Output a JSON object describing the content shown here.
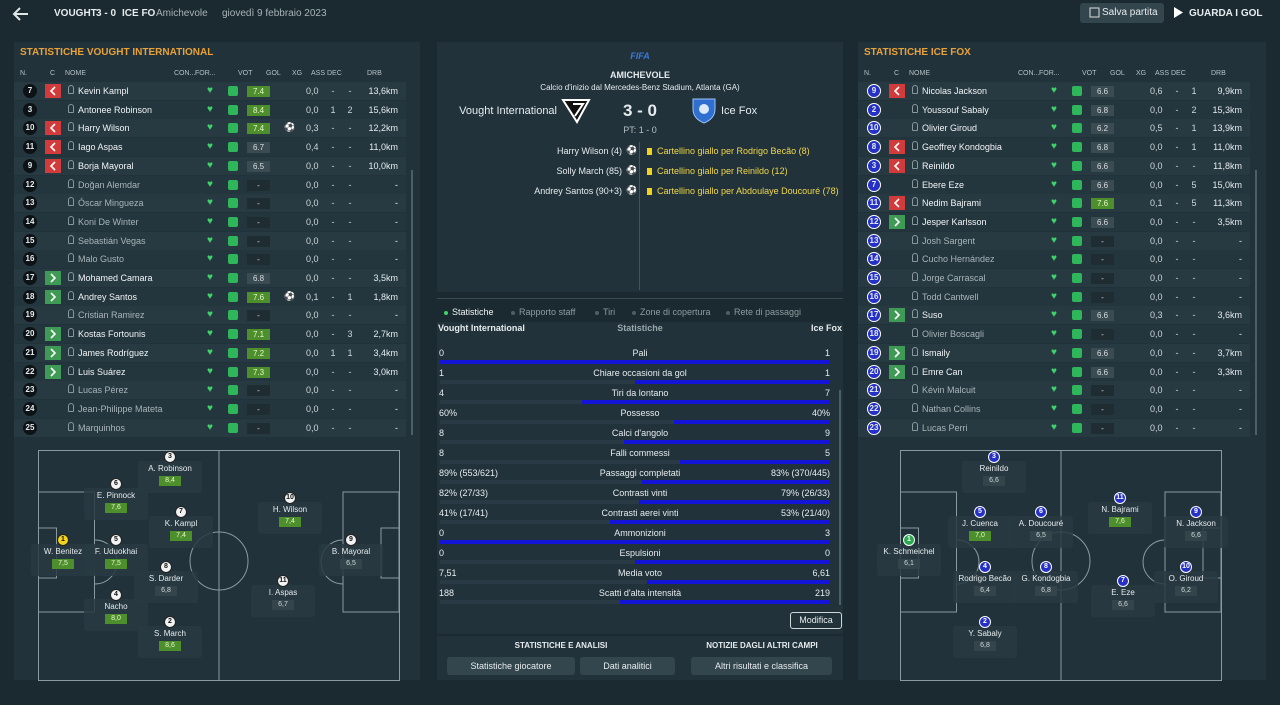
{
  "header": {
    "home": "VOUGHT",
    "score": "3 - 0",
    "away": "ICE FO",
    "competition": "Amichevole",
    "date": "giovedì 9 febbraio 2023",
    "save": "Salva partita",
    "goals": "GUARDA I GOL"
  },
  "columns": [
    "N.",
    "C",
    "NOME",
    "CON...",
    "FOR...",
    "VOT",
    "GOL",
    "XG",
    "ASS",
    "DEC",
    "DRB"
  ],
  "home_panel": {
    "title": "STATISTICHE VOUGHT INTERNATIONAL",
    "rows": [
      {
        "n": "7",
        "sub": "out",
        "name": "Kevin Kampl",
        "vot": "7.4",
        "goal": false,
        "xg": "0,0",
        "ass": "-",
        "dec": "-",
        "drb": "13,6km"
      },
      {
        "n": "3",
        "sub": "",
        "name": "Antonee Robinson",
        "vot": "8.4",
        "goal": false,
        "xg": "0,0",
        "ass": "1",
        "dec": "2",
        "drb": "15,6km"
      },
      {
        "n": "10",
        "sub": "out",
        "name": "Harry Wilson",
        "vot": "7.4",
        "goal": true,
        "xg": "0,3",
        "ass": "-",
        "dec": "-",
        "drb": "12,2km"
      },
      {
        "n": "11",
        "sub": "out",
        "name": "Iago Aspas",
        "vot": "6.7",
        "goal": false,
        "xg": "0,4",
        "ass": "-",
        "dec": "-",
        "drb": "11,0km"
      },
      {
        "n": "9",
        "sub": "out",
        "name": "Borja Mayoral",
        "vot": "6.5",
        "goal": false,
        "xg": "0,0",
        "ass": "-",
        "dec": "-",
        "drb": "10,0km"
      },
      {
        "n": "12",
        "sub": "",
        "name": "Doğan Alemdar",
        "vot": "-",
        "goal": false,
        "xg": "0,0",
        "ass": "-",
        "dec": "-",
        "drb": "-"
      },
      {
        "n": "13",
        "sub": "",
        "name": "Óscar Mingueza",
        "vot": "-",
        "goal": false,
        "xg": "0,0",
        "ass": "-",
        "dec": "-",
        "drb": "-"
      },
      {
        "n": "14",
        "sub": "",
        "name": "Koni De Winter",
        "vot": "-",
        "goal": false,
        "xg": "0,0",
        "ass": "-",
        "dec": "-",
        "drb": "-"
      },
      {
        "n": "15",
        "sub": "",
        "name": "Sebastián Vegas",
        "vot": "-",
        "goal": false,
        "xg": "0,0",
        "ass": "-",
        "dec": "-",
        "drb": "-"
      },
      {
        "n": "16",
        "sub": "",
        "name": "Malo Gusto",
        "vot": "-",
        "goal": false,
        "xg": "0,0",
        "ass": "-",
        "dec": "-",
        "drb": "-"
      },
      {
        "n": "17",
        "sub": "in",
        "name": "Mohamed Camara",
        "vot": "6.8",
        "goal": false,
        "xg": "0,0",
        "ass": "-",
        "dec": "-",
        "drb": "3,5km"
      },
      {
        "n": "18",
        "sub": "in",
        "name": "Andrey Santos",
        "vot": "7.6",
        "goal": true,
        "xg": "0,1",
        "ass": "-",
        "dec": "1",
        "drb": "1,8km"
      },
      {
        "n": "19",
        "sub": "",
        "name": "Cristian Ramirez",
        "vot": "-",
        "goal": false,
        "xg": "0,0",
        "ass": "-",
        "dec": "-",
        "drb": "-"
      },
      {
        "n": "20",
        "sub": "in",
        "name": "Kostas Fortounis",
        "vot": "7.1",
        "goal": false,
        "xg": "0,0",
        "ass": "-",
        "dec": "3",
        "drb": "2,7km"
      },
      {
        "n": "21",
        "sub": "in",
        "name": "James Rodríguez",
        "vot": "7.2",
        "goal": false,
        "xg": "0,0",
        "ass": "1",
        "dec": "1",
        "drb": "3,4km"
      },
      {
        "n": "22",
        "sub": "in",
        "name": "Luis Suárez",
        "vot": "7.3",
        "goal": false,
        "xg": "0,0",
        "ass": "-",
        "dec": "-",
        "drb": "3,0km"
      },
      {
        "n": "23",
        "sub": "",
        "name": "Lucas Pérez",
        "vot": "-",
        "goal": false,
        "xg": "0,0",
        "ass": "-",
        "dec": "-",
        "drb": "-"
      },
      {
        "n": "24",
        "sub": "",
        "name": "Jean-Philippe Mateta",
        "vot": "-",
        "goal": false,
        "xg": "0,0",
        "ass": "-",
        "dec": "-",
        "drb": "-"
      },
      {
        "n": "25",
        "sub": "",
        "name": "Marquinhos",
        "vot": "-",
        "goal": false,
        "xg": "0,0",
        "ass": "-",
        "dec": "-",
        "drb": "-"
      }
    ],
    "pitch": [
      {
        "n": "3",
        "name": "A. Robinson",
        "vot": "8,4"
      },
      {
        "n": "6",
        "name": "E. Pinnock",
        "vot": "7,6"
      },
      {
        "n": "7",
        "name": "K. Kampl",
        "vot": "7,4"
      },
      {
        "n": "10",
        "name": "H. Wilson",
        "vot": "7,4"
      },
      {
        "n": "1",
        "name": "W. Benitez",
        "vot": "7,5",
        "keeper": true
      },
      {
        "n": "5",
        "name": "F. Uduokhai",
        "vot": "7,5"
      },
      {
        "n": "9",
        "name": "B. Mayoral",
        "vot": "6,5"
      },
      {
        "n": "8",
        "name": "S. Darder",
        "vot": "6,8"
      },
      {
        "n": "11",
        "name": "I. Aspas",
        "vot": "6,7"
      },
      {
        "n": "4",
        "name": "Nacho",
        "vot": "8,0"
      },
      {
        "n": "2",
        "name": "S. March",
        "vot": "8,6"
      }
    ]
  },
  "away_panel": {
    "title": "STATISTICHE ICE FOX",
    "rows": [
      {
        "n": "9",
        "sub": "out",
        "name": "Nicolas Jackson",
        "vot": "6.6",
        "goal": false,
        "xg": "0,6",
        "ass": "-",
        "dec": "1",
        "drb": "9,9km"
      },
      {
        "n": "2",
        "sub": "",
        "name": "Youssouf Sabaly",
        "vot": "6.8",
        "goal": false,
        "xg": "0,0",
        "ass": "-",
        "dec": "2",
        "drb": "15,3km"
      },
      {
        "n": "10",
        "sub": "",
        "name": "Olivier Giroud",
        "vot": "6.2",
        "goal": false,
        "xg": "0,5",
        "ass": "-",
        "dec": "1",
        "drb": "13,9km"
      },
      {
        "n": "8",
        "sub": "out",
        "name": "Geoffrey Kondogbia",
        "vot": "6.8",
        "goal": false,
        "xg": "0,0",
        "ass": "-",
        "dec": "1",
        "drb": "11,0km"
      },
      {
        "n": "3",
        "sub": "out",
        "name": "Reinildo",
        "vot": "6.6",
        "goal": false,
        "xg": "0,0",
        "ass": "-",
        "dec": "-",
        "drb": "11,8km"
      },
      {
        "n": "7",
        "sub": "",
        "name": "Ebere Eze",
        "vot": "6.6",
        "goal": false,
        "xg": "0,0",
        "ass": "-",
        "dec": "5",
        "drb": "15,0km"
      },
      {
        "n": "11",
        "sub": "out",
        "name": "Nedim Bajrami",
        "vot": "7.6",
        "goal": false,
        "xg": "0,1",
        "ass": "-",
        "dec": "5",
        "drb": "11,3km"
      },
      {
        "n": "12",
        "sub": "in",
        "name": "Jesper Karlsson",
        "vot": "6.6",
        "goal": false,
        "xg": "0,0",
        "ass": "-",
        "dec": "-",
        "drb": "3,5km"
      },
      {
        "n": "13",
        "sub": "",
        "name": "Josh Sargent",
        "vot": "-",
        "goal": false,
        "xg": "0,0",
        "ass": "-",
        "dec": "-",
        "drb": "-"
      },
      {
        "n": "14",
        "sub": "",
        "name": "Cucho Hernández",
        "vot": "-",
        "goal": false,
        "xg": "0,0",
        "ass": "-",
        "dec": "-",
        "drb": "-"
      },
      {
        "n": "15",
        "sub": "",
        "name": "Jorge Carrascal",
        "vot": "-",
        "goal": false,
        "xg": "0,0",
        "ass": "-",
        "dec": "-",
        "drb": "-"
      },
      {
        "n": "16",
        "sub": "",
        "name": "Todd Cantwell",
        "vot": "-",
        "goal": false,
        "xg": "0,0",
        "ass": "-",
        "dec": "-",
        "drb": "-"
      },
      {
        "n": "17",
        "sub": "in",
        "name": "Suso",
        "vot": "6.6",
        "goal": false,
        "xg": "0,3",
        "ass": "-",
        "dec": "-",
        "drb": "3,6km"
      },
      {
        "n": "18",
        "sub": "",
        "name": "Olivier Boscagli",
        "vot": "-",
        "goal": false,
        "xg": "0,0",
        "ass": "-",
        "dec": "-",
        "drb": "-"
      },
      {
        "n": "19",
        "sub": "in",
        "name": "Ismaily",
        "vot": "6.6",
        "goal": false,
        "xg": "0,0",
        "ass": "-",
        "dec": "-",
        "drb": "3,7km"
      },
      {
        "n": "20",
        "sub": "in",
        "name": "Emre Can",
        "vot": "6.6",
        "goal": false,
        "xg": "0,0",
        "ass": "-",
        "dec": "-",
        "drb": "3,3km"
      },
      {
        "n": "21",
        "sub": "",
        "name": "Kévin Malcuit",
        "vot": "-",
        "goal": false,
        "xg": "0,0",
        "ass": "-",
        "dec": "-",
        "drb": "-"
      },
      {
        "n": "22",
        "sub": "",
        "name": "Nathan Collins",
        "vot": "-",
        "goal": false,
        "xg": "0,0",
        "ass": "-",
        "dec": "-",
        "drb": "-"
      },
      {
        "n": "23",
        "sub": "",
        "name": "Lucas Perri",
        "vot": "-",
        "goal": false,
        "xg": "0,0",
        "ass": "-",
        "dec": "-",
        "drb": "-"
      }
    ],
    "pitch": [
      {
        "n": "3",
        "name": "Reinildo",
        "vot": "6,6"
      },
      {
        "n": "5",
        "name": "J. Cuenca",
        "vot": "7,0"
      },
      {
        "n": "6",
        "name": "A. Doucouré",
        "vot": "6,5"
      },
      {
        "n": "11",
        "name": "N. Bajrami",
        "vot": "7,6"
      },
      {
        "n": "9",
        "name": "N. Jackson",
        "vot": "6,6"
      },
      {
        "n": "1",
        "name": "K. Schmeichel",
        "vot": "6,1",
        "keeper": true
      },
      {
        "n": "4",
        "name": "Rodrigo Becão",
        "vot": "6,4"
      },
      {
        "n": "8",
        "name": "G. Kondogbia",
        "vot": "6,8"
      },
      {
        "n": "7",
        "name": "E. Eze",
        "vot": "6,6"
      },
      {
        "n": "10",
        "name": "O. Giroud",
        "vot": "6,2"
      },
      {
        "n": "2",
        "name": "Y. Sabaly",
        "vot": "6,8"
      }
    ]
  },
  "match": {
    "logo": "FIFA",
    "competition": "AMICHEVOLE",
    "kickoff": "Calcio d'inizio dal Mercedes-Benz Stadium, Atlanta (GA)",
    "home": "Vought International",
    "score": "3 - 0",
    "away": "Ice Fox",
    "half_time": "PT: 1 - 0",
    "home_events": [
      "Harry Wilson (4)",
      "Solly March (85)",
      "Andrey Santos (90+3)"
    ],
    "away_events": [
      "Cartellino giallo per Rodrigo Becão (8)",
      "Cartellino giallo per Reinildo (12)",
      "Cartellino giallo per Abdoulaye Doucouré (78)"
    ]
  },
  "tabs": [
    "Statistiche",
    "Rapporto staff",
    "Tiri",
    "Zone di copertura",
    "Rete di passaggi"
  ],
  "stats": {
    "home": "Vought International",
    "title": "Statistiche",
    "away": "Ice Fox",
    "rows": [
      {
        "label": "Pali",
        "home": 0,
        "away": 1
      },
      {
        "label": "Chiare occasioni da gol",
        "home": 1,
        "away": 1
      },
      {
        "label": "Tiri da lontano",
        "home": 4,
        "away": 7
      },
      {
        "label": "Possesso",
        "home": 60,
        "away": 40,
        "home_label": "60%",
        "away_label": "40%"
      },
      {
        "label": "Calci d'angolo",
        "home": 8,
        "away": 9
      },
      {
        "label": "Falli commessi",
        "home": 8,
        "away": 5
      },
      {
        "label": "Passaggi completati",
        "home": 89,
        "away": 83,
        "home_label": "89% (553/621)",
        "away_label": "83% (370/445)"
      },
      {
        "label": "Contrasti vinti",
        "home": 82,
        "away": 79,
        "home_label": "82% (27/33)",
        "away_label": "79% (26/33)"
      },
      {
        "label": "Contrasti aerei vinti",
        "home": 41,
        "away": 53,
        "home_label": "41% (17/41)",
        "away_label": "53% (21/40)"
      },
      {
        "label": "Ammonizioni",
        "home": 0,
        "away": 3
      },
      {
        "label": "Espulsioni",
        "home": 0,
        "away": 0
      },
      {
        "label": "Media voto",
        "home": 7.51,
        "away": 6.61,
        "home_label": "7,51",
        "away_label": "6,61"
      },
      {
        "label": "Scatti d'alta intensità",
        "home": 188,
        "away": 219
      }
    ],
    "edit": "Modifica"
  },
  "footer": {
    "analysis": "STATISTICHE E ANALISI",
    "news": "NOTIZIE DAGLI ALTRI CAMPI",
    "player_stats": "Statistiche giocatore",
    "analytics": "Dati analitici",
    "results": "Altri risultati e classifica"
  }
}
